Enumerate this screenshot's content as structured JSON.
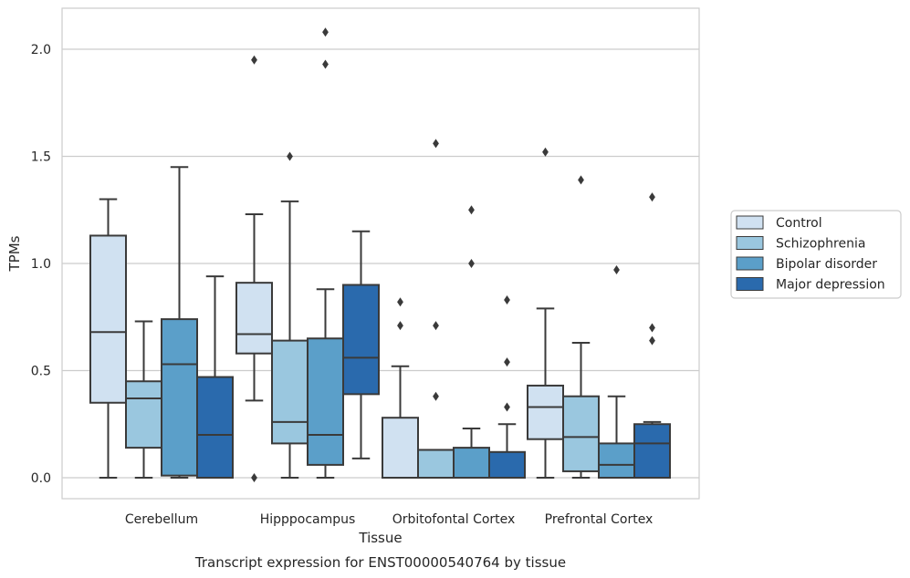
{
  "chart_data": {
    "type": "box",
    "xlabel": "Tissue",
    "ylabel": "TPMs",
    "caption": "Transcript expression for ENST00000540764 by tissue",
    "ylim": [
      -0.1,
      2.2
    ],
    "yticks": [
      "0.0",
      "0.5",
      "1.0",
      "1.5",
      "2.0"
    ],
    "grid": true,
    "legend_position": "right",
    "categories": [
      "Cerebellum",
      "Hipppocampus",
      "Orbitofontal Cortex",
      "Prefrontal Cortex"
    ],
    "series": [
      {
        "name": "Control",
        "color": "#d0e1f1",
        "boxes": [
          {
            "whislo": 0.0,
            "q1": 0.35,
            "med": 0.68,
            "q3": 1.13,
            "whishi": 1.3,
            "fliers": []
          },
          {
            "whislo": 0.36,
            "q1": 0.58,
            "med": 0.67,
            "q3": 0.91,
            "whishi": 1.23,
            "fliers": [
              0.0,
              1.95
            ]
          },
          {
            "whislo": 0.0,
            "q1": 0.0,
            "med": 0.0,
            "q3": 0.28,
            "whishi": 0.52,
            "fliers": [
              0.71,
              0.82
            ]
          },
          {
            "whislo": 0.0,
            "q1": 0.18,
            "med": 0.33,
            "q3": 0.43,
            "whishi": 0.79,
            "fliers": [
              1.52
            ]
          }
        ]
      },
      {
        "name": "Schizophrenia",
        "color": "#9ac7df",
        "boxes": [
          {
            "whislo": 0.0,
            "q1": 0.14,
            "med": 0.37,
            "q3": 0.45,
            "whishi": 0.73,
            "fliers": []
          },
          {
            "whislo": 0.0,
            "q1": 0.16,
            "med": 0.26,
            "q3": 0.64,
            "whishi": 1.29,
            "fliers": [
              1.5
            ]
          },
          {
            "whislo": 0.0,
            "q1": 0.0,
            "med": 0.13,
            "q3": 0.13,
            "whishi": 0.13,
            "fliers": [
              0.38,
              0.71,
              1.56
            ]
          },
          {
            "whislo": 0.0,
            "q1": 0.03,
            "med": 0.19,
            "q3": 0.38,
            "whishi": 0.63,
            "fliers": [
              1.39
            ]
          }
        ]
      },
      {
        "name": "Bipolar disorder",
        "color": "#5b9fc9",
        "boxes": [
          {
            "whislo": 0.0,
            "q1": 0.01,
            "med": 0.53,
            "q3": 0.74,
            "whishi": 1.45,
            "fliers": []
          },
          {
            "whislo": 0.0,
            "q1": 0.06,
            "med": 0.2,
            "q3": 0.65,
            "whishi": 0.88,
            "fliers": [
              1.93,
              2.08
            ]
          },
          {
            "whislo": 0.0,
            "q1": 0.0,
            "med": 0.0,
            "q3": 0.14,
            "whishi": 0.23,
            "fliers": [
              1.0,
              1.25
            ]
          },
          {
            "whislo": 0.0,
            "q1": 0.0,
            "med": 0.06,
            "q3": 0.16,
            "whishi": 0.38,
            "fliers": [
              0.97
            ]
          }
        ]
      },
      {
        "name": "Major depression",
        "color": "#2a6aad",
        "boxes": [
          {
            "whislo": 0.0,
            "q1": 0.0,
            "med": 0.2,
            "q3": 0.47,
            "whishi": 0.94,
            "fliers": []
          },
          {
            "whislo": 0.09,
            "q1": 0.39,
            "med": 0.56,
            "q3": 0.9,
            "whishi": 1.15,
            "fliers": []
          },
          {
            "whislo": 0.0,
            "q1": 0.0,
            "med": 0.0,
            "q3": 0.12,
            "whishi": 0.25,
            "fliers": [
              0.33,
              0.54,
              0.83
            ]
          },
          {
            "whislo": 0.0,
            "q1": 0.0,
            "med": 0.16,
            "q3": 0.25,
            "whishi": 0.26,
            "fliers": [
              0.64,
              0.7,
              1.31
            ]
          }
        ]
      }
    ]
  }
}
